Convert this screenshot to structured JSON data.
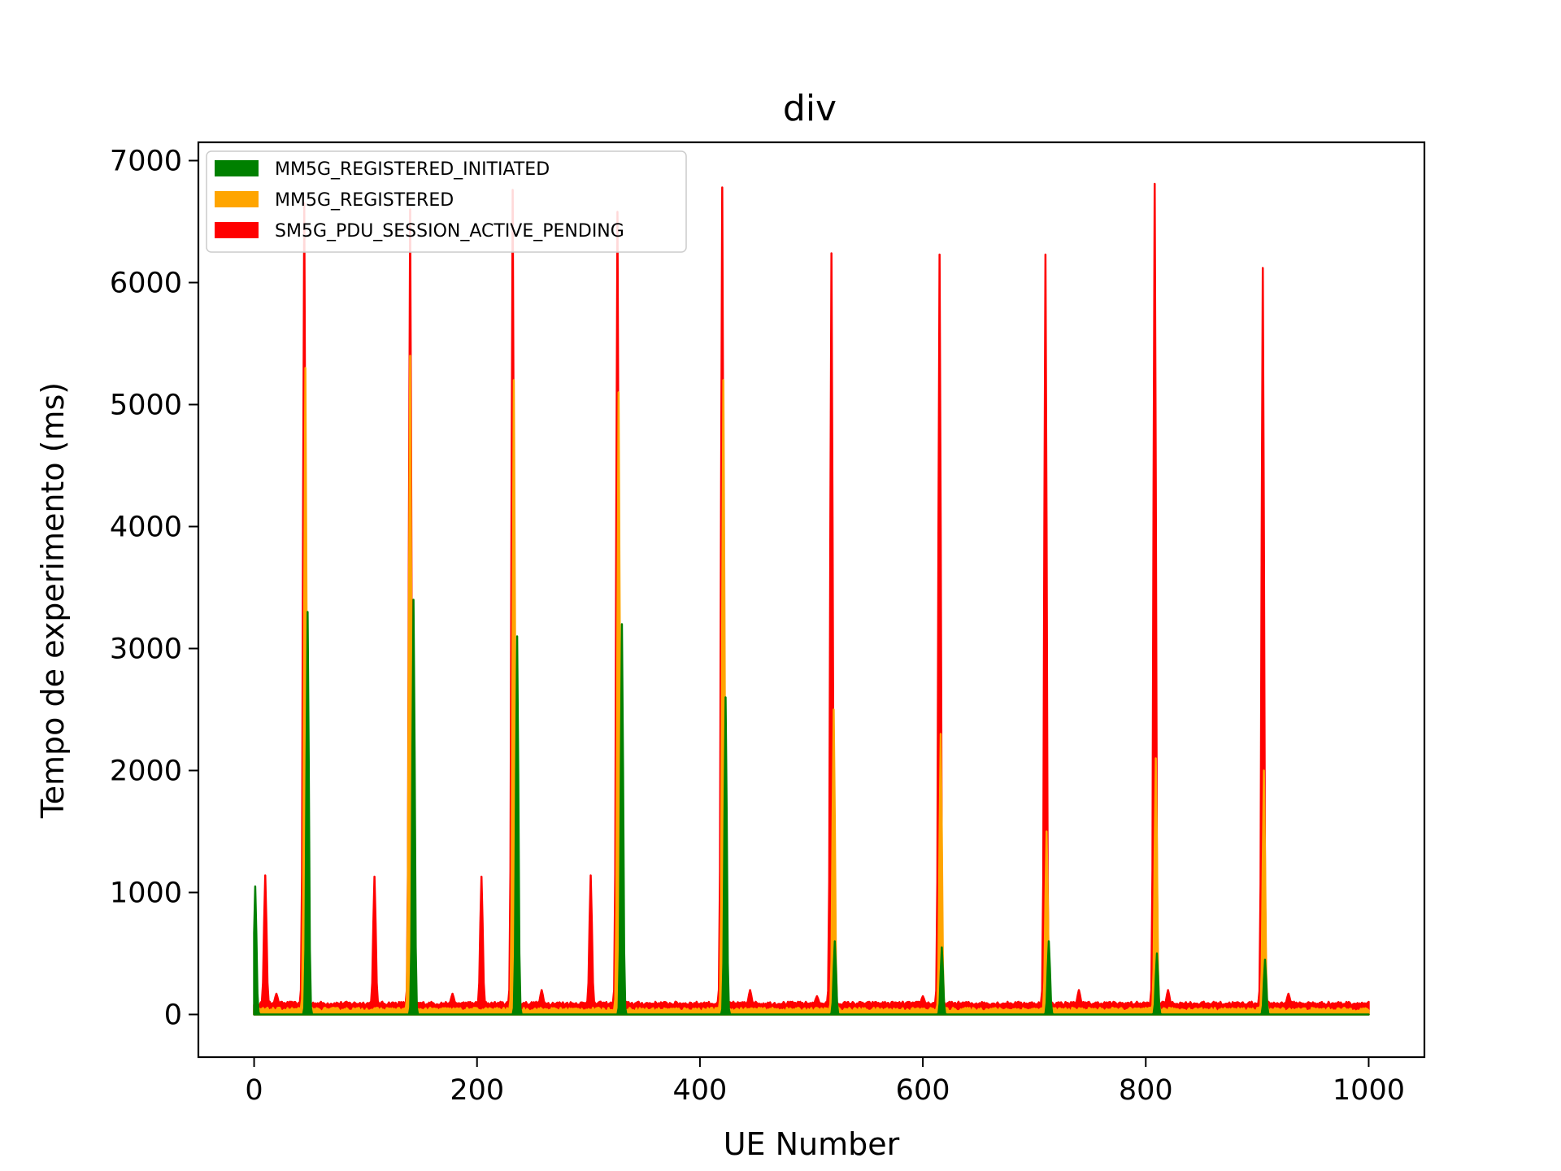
{
  "chart_data": {
    "type": "area",
    "title": "div",
    "xlabel": "UE Number",
    "ylabel": "Tempo de experimento (ms)",
    "xlim": [
      -50,
      1050
    ],
    "ylim": [
      -350,
      7150
    ],
    "xticks": [
      0,
      200,
      400,
      600,
      800,
      1000
    ],
    "yticks": [
      0,
      1000,
      2000,
      3000,
      4000,
      5000,
      6000,
      7000
    ],
    "grid": false,
    "legend_position": "top-left",
    "x_range": [
      0,
      1000
    ],
    "series": [
      {
        "name": "SM5G_PDU_SESSION_ACTIVE_PENDING",
        "color": "#ff0000",
        "baseline": 90,
        "peaks": [
          [
            10,
            1140
          ],
          [
            20,
            170
          ],
          [
            45,
            6650
          ],
          [
            108,
            1130
          ],
          [
            140,
            6600
          ],
          [
            178,
            170
          ],
          [
            204,
            1130
          ],
          [
            232,
            6760
          ],
          [
            258,
            200
          ],
          [
            302,
            1140
          ],
          [
            326,
            6580
          ],
          [
            420,
            6780
          ],
          [
            445,
            200
          ],
          [
            505,
            150
          ],
          [
            518,
            6240
          ],
          [
            600,
            150
          ],
          [
            615,
            6230
          ],
          [
            710,
            6230
          ],
          [
            740,
            200
          ],
          [
            808,
            6810
          ],
          [
            820,
            200
          ],
          [
            905,
            6120
          ],
          [
            928,
            170
          ]
        ]
      },
      {
        "name": "MM5G_REGISTERED",
        "color": "#ffa500",
        "baseline": 40,
        "peaks": [
          [
            46,
            5300
          ],
          [
            140,
            5400
          ],
          [
            233,
            5200
          ],
          [
            327,
            5100
          ],
          [
            421,
            5200
          ],
          [
            520,
            2500
          ],
          [
            616,
            2300
          ],
          [
            711,
            1500
          ],
          [
            809,
            2100
          ],
          [
            906,
            2000
          ]
        ]
      },
      {
        "name": "MM5G_REGISTERED_INITIATED",
        "color": "#008000",
        "baseline": 0,
        "peaks": [
          [
            1,
            1050
          ],
          [
            48,
            3300
          ],
          [
            143,
            3400
          ],
          [
            236,
            3100
          ],
          [
            330,
            3200
          ],
          [
            423,
            2600
          ],
          [
            521,
            600
          ],
          [
            617,
            550
          ],
          [
            713,
            600
          ],
          [
            810,
            500
          ],
          [
            907,
            450
          ]
        ]
      }
    ]
  }
}
